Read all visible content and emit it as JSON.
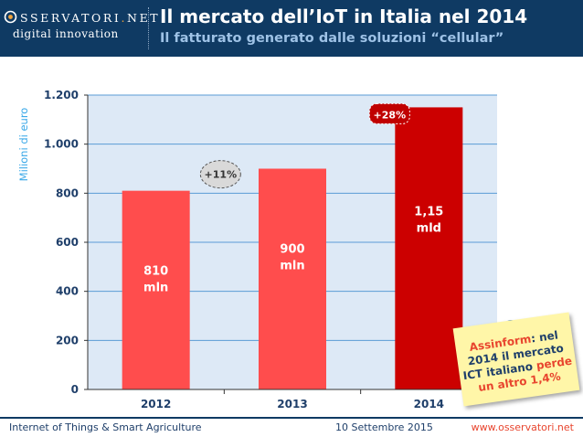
{
  "header": {
    "logo_top": "SSERVATORI",
    "logo_dot": ".",
    "logo_net": "NET",
    "logo_bottom": "digital innovation",
    "title": "Il mercato dell’IoT in Italia nel 2014",
    "subtitle": "Il fatturato generato dalle soluzioni “cellular”"
  },
  "chart_data": {
    "type": "bar",
    "categories": [
      "2012",
      "2013",
      "2014"
    ],
    "values": [
      810,
      900,
      1150
    ],
    "bar_labels": [
      [
        "810",
        "mln"
      ],
      [
        "900",
        "mln"
      ],
      [
        "1,15",
        "mld"
      ]
    ],
    "bar_colors": [
      "#ff4d4d",
      "#ff4d4d",
      "#cc0000"
    ],
    "growth_labels": [
      "+11%",
      "+28%"
    ],
    "ylabel": "Milioni di euro",
    "ylim": [
      0,
      1200
    ],
    "yticks": [
      0,
      200,
      400,
      600,
      800,
      1000,
      1200
    ],
    "ytick_labels": [
      "0",
      "200",
      "400",
      "600",
      "800",
      "1.000",
      "1.200"
    ],
    "grid": true
  },
  "note": {
    "brand": "Assinform",
    "line1_rest": ": nel",
    "line2": "2014 il mercato",
    "line3_start": "ICT italiano ",
    "line3_red": "perde",
    "line4": "un altro 1,4%"
  },
  "footer": {
    "left": "Internet of Things & Smart Agriculture",
    "center": "10 Settembre 2015",
    "right": "www.osservatori.net"
  },
  "colors": {
    "header_bg": "#0f3a63",
    "plot_bg": "#dde9f6",
    "accent_blue": "#3aa8e8",
    "note_red": "#e8452e"
  }
}
